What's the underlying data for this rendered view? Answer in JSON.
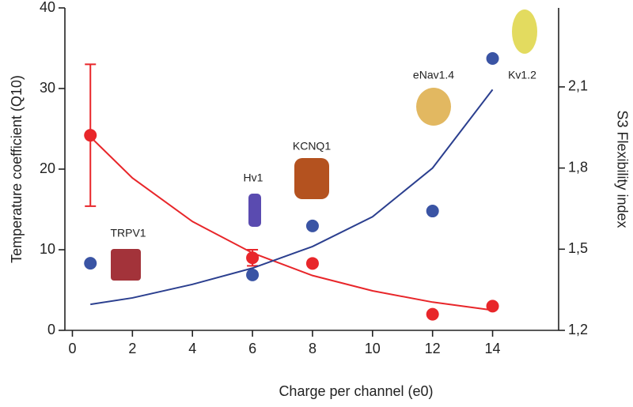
{
  "chart_data": {
    "type": "scatter",
    "xlabel": "Charge per channel (e0)",
    "ylabel": "Temperature coefficient (Q10)",
    "y2label": "S3 Flexibility index",
    "xlim": [
      -0.25,
      16.2
    ],
    "xticks": [
      0,
      2,
      4,
      6,
      8,
      10,
      12,
      14
    ],
    "ylim": [
      0,
      40
    ],
    "yticks": [
      0,
      10,
      20,
      30,
      40
    ],
    "y2lim": [
      1.2,
      2.392
    ],
    "y2ticks": [
      {
        "value": 1.2,
        "label": "1,2"
      },
      {
        "value": 1.5,
        "label": "1,5"
      },
      {
        "value": 1.8,
        "label": "1,8"
      },
      {
        "value": 2.1,
        "label": "2,1"
      }
    ],
    "series": [
      {
        "kind": "scatter",
        "color": "#e8262a",
        "x": [
          0.6,
          6,
          8,
          12,
          14
        ],
        "values": [
          24.2,
          9,
          8.3,
          2,
          3
        ],
        "errors": [
          8.8,
          1,
          null,
          null,
          null
        ]
      },
      {
        "kind": "scatter",
        "color": "#3a54a4",
        "axis": "y2",
        "x": [
          0.6,
          6,
          8,
          12,
          14
        ],
        "values": [
          1.448,
          1.405,
          1.586,
          1.641,
          2.205
        ]
      },
      {
        "kind": "line",
        "color": "#e8262a",
        "x": [
          0.6,
          2,
          4,
          6,
          8,
          10,
          12,
          14
        ],
        "values": [
          24.0,
          18.9,
          13.5,
          9.6,
          6.8,
          4.9,
          3.5,
          2.5
        ]
      },
      {
        "kind": "line",
        "color": "#2b3f8f",
        "axis": "y2",
        "x": [
          0.6,
          2,
          4,
          6,
          8,
          10,
          12,
          14
        ],
        "values": [
          1.296,
          1.32,
          1.37,
          1.43,
          1.51,
          1.62,
          1.8,
          2.09
        ]
      }
    ],
    "annotations": [
      "TRPV1",
      "Hv1",
      "KCNQ1",
      "eNav1.4",
      "Kv1.2"
    ]
  }
}
